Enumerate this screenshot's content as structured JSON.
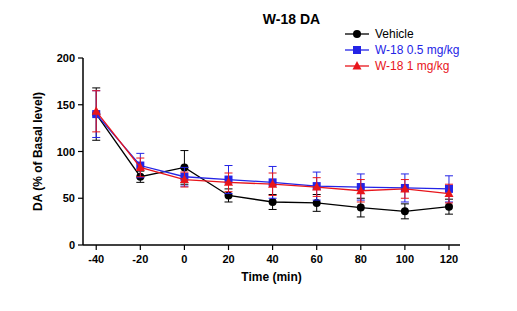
{
  "chart_data": {
    "type": "line",
    "title": "W-18 DA",
    "x_label": "Time (min)",
    "y_label": "DA (% of Basal level)",
    "x": [
      -40,
      -20,
      0,
      20,
      40,
      60,
      80,
      100,
      120
    ],
    "xlim": [
      -46,
      125
    ],
    "xticks": [
      -40,
      -20,
      0,
      20,
      40,
      60,
      80,
      100,
      120
    ],
    "ylim": [
      0,
      200
    ],
    "yticks": [
      0,
      50,
      100,
      150,
      200
    ],
    "grid": false,
    "legend": "top-right",
    "series": [
      {
        "name": "Vehicle",
        "color": "#000000",
        "marker": "circle",
        "values": [
          140,
          73,
          83,
          53,
          46,
          45,
          40,
          36,
          41
        ],
        "errors": [
          28,
          6,
          18,
          7,
          8,
          9,
          10,
          8,
          8
        ]
      },
      {
        "name": "W-18 0.5 mg/kg",
        "color": "#2424e6",
        "marker": "square",
        "values": [
          140,
          85,
          73,
          70,
          67,
          63,
          62,
          61,
          60
        ],
        "errors": [
          25,
          13,
          10,
          15,
          17,
          15,
          14,
          15,
          14
        ]
      },
      {
        "name": "W-18 1 mg/kg",
        "color": "#e8151b",
        "marker": "triangle",
        "values": [
          143,
          83,
          70,
          67,
          65,
          62,
          58,
          60,
          55
        ],
        "errors": [
          22,
          10,
          8,
          10,
          12,
          10,
          12,
          10,
          10
        ]
      }
    ]
  }
}
